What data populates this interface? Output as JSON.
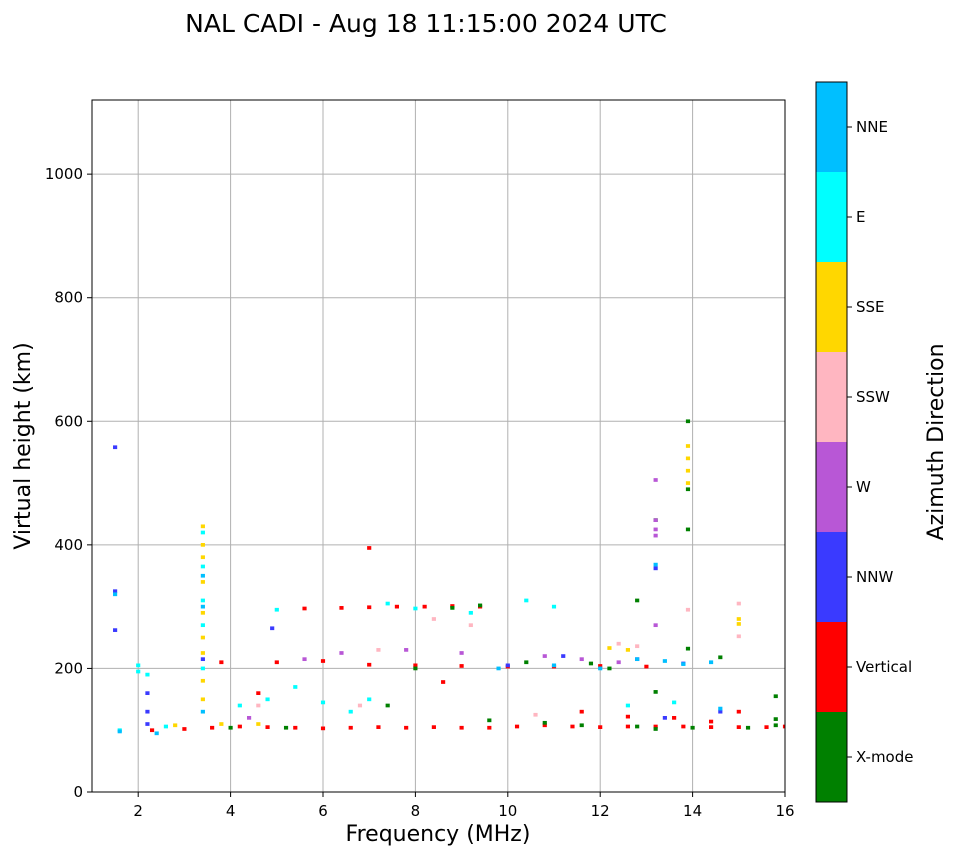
{
  "chart_data": {
    "type": "heatmap",
    "title": "NAL CADI - Aug 18 11:15:00 2024 UTC",
    "xlabel": "Frequency (MHz)",
    "ylabel": "Virtual height (km)",
    "xlim": [
      1,
      16
    ],
    "ylim": [
      0,
      1120
    ],
    "xticks": [
      2,
      4,
      6,
      8,
      10,
      12,
      14,
      16
    ],
    "yticks": [
      0,
      200,
      400,
      600,
      800,
      1000
    ],
    "grid": true,
    "colorbar": {
      "label": "Azimuth Direction",
      "categories": [
        {
          "name": "X-mode",
          "color": "#008000"
        },
        {
          "name": "Vertical",
          "color": "#ff0000"
        },
        {
          "name": "NNW",
          "color": "#3a3aff"
        },
        {
          "name": "W",
          "color": "#b857d6"
        },
        {
          "name": "SSW",
          "color": "#ffb6c1"
        },
        {
          "name": "SSE",
          "color": "#ffd700"
        },
        {
          "name": "E",
          "color": "#00ffff"
        },
        {
          "name": "NNE",
          "color": "#00bfff"
        }
      ]
    },
    "series": [
      {
        "name": "Vertical",
        "cells": [
          [
            2.3,
            100
          ],
          [
            3.0,
            102
          ],
          [
            3.6,
            104
          ],
          [
            4.2,
            106
          ],
          [
            4.8,
            105
          ],
          [
            5.4,
            104
          ],
          [
            6.0,
            103
          ],
          [
            6.6,
            104
          ],
          [
            7.2,
            105
          ],
          [
            7.8,
            104
          ],
          [
            8.4,
            105
          ],
          [
            9.0,
            104
          ],
          [
            9.6,
            104
          ],
          [
            10.2,
            106
          ],
          [
            10.8,
            108
          ],
          [
            11.4,
            106
          ],
          [
            12.0,
            105
          ],
          [
            12.6,
            106
          ],
          [
            13.2,
            106
          ],
          [
            13.8,
            106
          ],
          [
            14.4,
            105
          ],
          [
            15.0,
            105
          ],
          [
            15.6,
            105
          ],
          [
            16.0,
            106
          ],
          [
            6.4,
            298
          ],
          [
            7.0,
            299
          ],
          [
            7.6,
            300
          ],
          [
            8.2,
            300
          ],
          [
            8.8,
            301
          ],
          [
            9.4,
            300
          ],
          [
            5.0,
            210
          ],
          [
            6.0,
            212
          ],
          [
            7.0,
            206
          ],
          [
            8.0,
            205
          ],
          [
            9.0,
            204
          ],
          [
            10.0,
            203
          ],
          [
            11.0,
            203
          ],
          [
            12.0,
            204
          ],
          [
            13.0,
            203
          ],
          [
            7.0,
            395
          ],
          [
            8.6,
            178
          ],
          [
            12.6,
            122
          ],
          [
            13.6,
            120
          ],
          [
            14.4,
            114
          ],
          [
            15.0,
            130
          ],
          [
            5.6,
            297
          ],
          [
            11.6,
            130
          ],
          [
            3.8,
            210
          ],
          [
            4.6,
            160
          ]
        ]
      },
      {
        "name": "X-mode",
        "cells": [
          [
            8.8,
            298
          ],
          [
            9.4,
            302
          ],
          [
            11.6,
            108
          ],
          [
            12.8,
            106
          ],
          [
            13.2,
            102
          ],
          [
            14.0,
            104
          ],
          [
            15.2,
            104
          ],
          [
            15.8,
            108
          ],
          [
            12.8,
            310
          ],
          [
            13.2,
            440
          ],
          [
            13.9,
            600
          ],
          [
            13.9,
            490
          ],
          [
            13.9,
            425
          ],
          [
            13.9,
            232
          ],
          [
            14.6,
            218
          ],
          [
            10.4,
            210
          ],
          [
            13.2,
            162
          ],
          [
            15.8,
            155
          ],
          [
            15.8,
            118
          ],
          [
            4.0,
            104
          ],
          [
            5.2,
            104
          ],
          [
            8.0,
            200
          ],
          [
            9.6,
            116
          ],
          [
            10.8,
            112
          ],
          [
            7.4,
            140
          ],
          [
            11.8,
            208
          ],
          [
            12.2,
            200
          ]
        ]
      },
      {
        "name": "NNW",
        "cells": [
          [
            1.5,
            558
          ],
          [
            1.5,
            325
          ],
          [
            1.5,
            262
          ],
          [
            2.2,
            160
          ],
          [
            2.2,
            130
          ],
          [
            2.2,
            110
          ],
          [
            13.2,
            362
          ],
          [
            12.8,
            215
          ],
          [
            13.8,
            208
          ],
          [
            14.6,
            130
          ],
          [
            3.4,
            215
          ],
          [
            10.0,
            205
          ],
          [
            11.2,
            220
          ],
          [
            4.9,
            265
          ],
          [
            13.4,
            120
          ]
        ]
      },
      {
        "name": "W",
        "cells": [
          [
            13.2,
            440
          ],
          [
            13.2,
            425
          ],
          [
            13.2,
            415
          ],
          [
            13.2,
            505
          ],
          [
            6.4,
            225
          ],
          [
            7.8,
            230
          ],
          [
            9.0,
            225
          ],
          [
            10.8,
            220
          ],
          [
            12.4,
            210
          ],
          [
            5.6,
            215
          ],
          [
            11.6,
            215
          ],
          [
            13.2,
            270
          ],
          [
            4.4,
            120
          ]
        ]
      },
      {
        "name": "SSW",
        "cells": [
          [
            15.0,
            305
          ],
          [
            15.0,
            252
          ],
          [
            12.4,
            240
          ],
          [
            12.8,
            236
          ],
          [
            8.4,
            280
          ],
          [
            9.2,
            270
          ],
          [
            4.6,
            140
          ],
          [
            6.8,
            140
          ],
          [
            10.6,
            125
          ],
          [
            13.9,
            295
          ],
          [
            7.2,
            230
          ]
        ]
      },
      {
        "name": "SSE",
        "cells": [
          [
            3.4,
            430
          ],
          [
            3.4,
            400
          ],
          [
            3.4,
            380
          ],
          [
            3.4,
            340
          ],
          [
            3.4,
            290
          ],
          [
            3.4,
            250
          ],
          [
            3.4,
            225
          ],
          [
            3.4,
            180
          ],
          [
            3.4,
            150
          ],
          [
            13.9,
            560
          ],
          [
            13.9,
            540
          ],
          [
            13.9,
            520
          ],
          [
            13.9,
            500
          ],
          [
            15.0,
            280
          ],
          [
            15.0,
            272
          ],
          [
            12.2,
            233
          ],
          [
            12.6,
            230
          ],
          [
            2.8,
            108
          ],
          [
            3.8,
            110
          ],
          [
            4.6,
            110
          ]
        ]
      },
      {
        "name": "E",
        "cells": [
          [
            2.0,
            205
          ],
          [
            2.0,
            195
          ],
          [
            2.2,
            190
          ],
          [
            3.4,
            420
          ],
          [
            3.4,
            365
          ],
          [
            3.4,
            310
          ],
          [
            3.4,
            270
          ],
          [
            3.4,
            200
          ],
          [
            7.4,
            305
          ],
          [
            8.0,
            297
          ],
          [
            9.2,
            290
          ],
          [
            4.2,
            140
          ],
          [
            4.8,
            150
          ],
          [
            5.4,
            170
          ],
          [
            6.0,
            145
          ],
          [
            6.6,
            130
          ],
          [
            7.0,
            150
          ],
          [
            1.6,
            100
          ],
          [
            2.6,
            106
          ],
          [
            5.0,
            295
          ],
          [
            10.4,
            310
          ],
          [
            11.0,
            300
          ],
          [
            12.6,
            140
          ],
          [
            13.6,
            145
          ]
        ]
      },
      {
        "name": "NNE",
        "cells": [
          [
            3.4,
            350
          ],
          [
            3.4,
            300
          ],
          [
            3.4,
            130
          ],
          [
            13.2,
            368
          ],
          [
            12.8,
            215
          ],
          [
            13.4,
            212
          ],
          [
            13.8,
            207
          ],
          [
            14.4,
            210
          ],
          [
            1.5,
            320
          ],
          [
            1.6,
            98
          ],
          [
            2.4,
            95
          ],
          [
            9.8,
            200
          ],
          [
            11.0,
            205
          ],
          [
            12.0,
            200
          ],
          [
            14.6,
            135
          ]
        ]
      }
    ]
  }
}
